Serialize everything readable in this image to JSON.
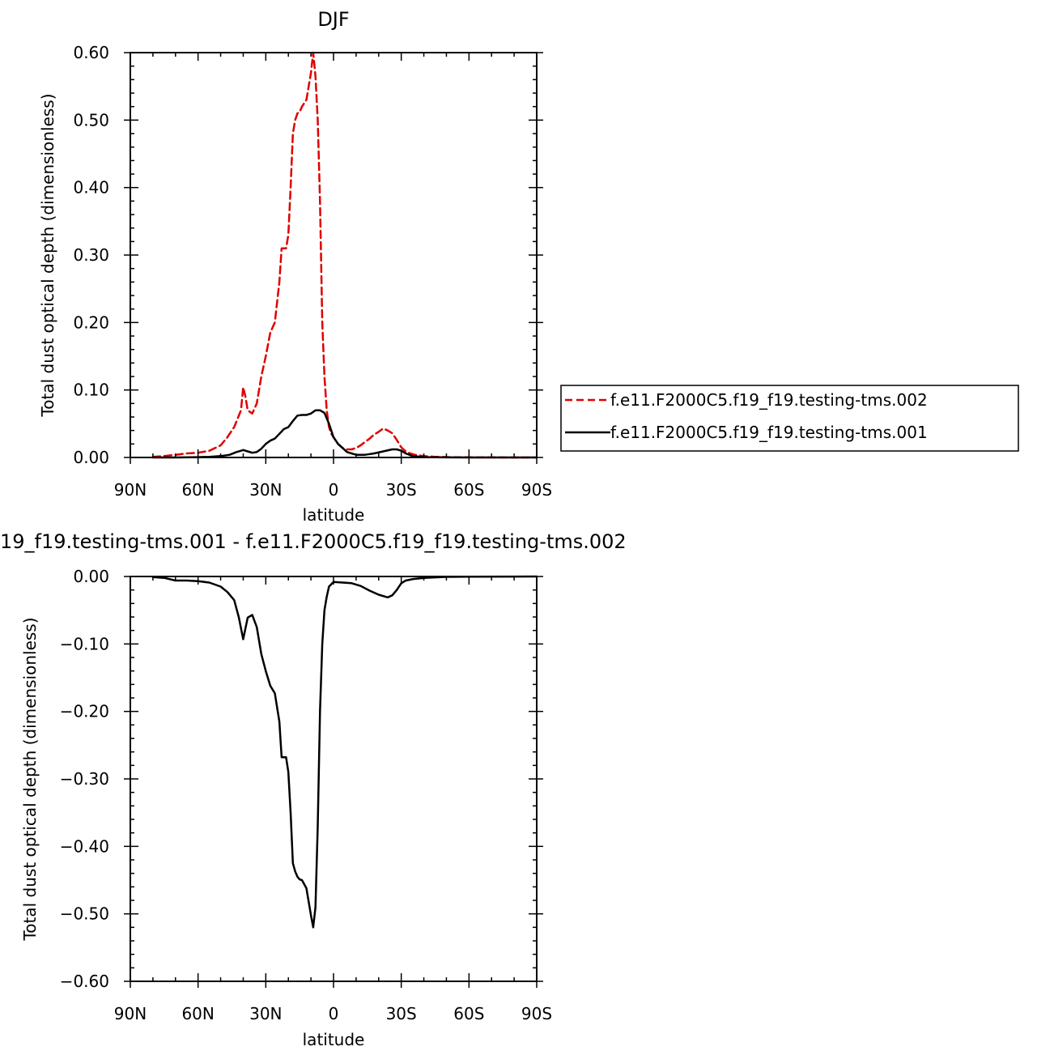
{
  "chart_data": [
    {
      "type": "line",
      "title": "DJF",
      "xlabel": "latitude",
      "ylabel": "Total dust optical depth (dimensionless)",
      "xlim": [
        90,
        -90
      ],
      "ylim": [
        0,
        0.6
      ],
      "x_ticks": [
        {
          "value": 90,
          "label": "90N"
        },
        {
          "value": 60,
          "label": "60N"
        },
        {
          "value": 30,
          "label": "30N"
        },
        {
          "value": 0,
          "label": "0"
        },
        {
          "value": -30,
          "label": "30S"
        },
        {
          "value": -60,
          "label": "60S"
        },
        {
          "value": -90,
          "label": "90S"
        }
      ],
      "y_ticks": [
        {
          "value": 0.0,
          "label": "0.00"
        },
        {
          "value": 0.1,
          "label": "0.10"
        },
        {
          "value": 0.2,
          "label": "0.20"
        },
        {
          "value": 0.3,
          "label": "0.30"
        },
        {
          "value": 0.4,
          "label": "0.40"
        },
        {
          "value": 0.5,
          "label": "0.50"
        },
        {
          "value": 0.6,
          "label": "0.60"
        }
      ],
      "legend": "right",
      "series": [
        {
          "name": "f.e11.F2000C5.f19_f19.testing-tms.002",
          "color": "#e00000",
          "dash": "dashed",
          "x": [
            80,
            75,
            70,
            65,
            60,
            55,
            50,
            47,
            44,
            41,
            40,
            39,
            38,
            36,
            34,
            32,
            30,
            28,
            26,
            24,
            23,
            21,
            20,
            19,
            18,
            17,
            16,
            15,
            14,
            12,
            10,
            9,
            8,
            7,
            6,
            5,
            4,
            3,
            2,
            1,
            0,
            -1,
            -2,
            -4,
            -6,
            -8,
            -10,
            -12,
            -14,
            -16,
            -18,
            -20,
            -22,
            -24,
            -26,
            -28,
            -30,
            -32,
            -34,
            -36,
            -40,
            -45,
            -50,
            -55,
            -60,
            -70,
            -80,
            -90
          ],
          "y": [
            0.001,
            0.002,
            0.004,
            0.006,
            0.007,
            0.01,
            0.018,
            0.03,
            0.045,
            0.07,
            0.104,
            0.09,
            0.07,
            0.065,
            0.08,
            0.12,
            0.15,
            0.185,
            0.2,
            0.26,
            0.31,
            0.31,
            0.33,
            0.4,
            0.48,
            0.5,
            0.51,
            0.512,
            0.52,
            0.53,
            0.57,
            0.6,
            0.565,
            0.5,
            0.38,
            0.2,
            0.12,
            0.07,
            0.045,
            0.035,
            0.03,
            0.025,
            0.02,
            0.014,
            0.012,
            0.012,
            0.014,
            0.018,
            0.023,
            0.028,
            0.034,
            0.038,
            0.043,
            0.04,
            0.036,
            0.026,
            0.015,
            0.009,
            0.006,
            0.004,
            0.002,
            0.001,
            0.0006,
            0.0003,
            0.0002,
            0.0001,
            0.0,
            0.0
          ]
        },
        {
          "name": "f.e11.F2000C5.f19_f19.testing-tms.001",
          "color": "#000000",
          "dash": "solid",
          "x": [
            80,
            70,
            60,
            55,
            50,
            46,
            43,
            41,
            40,
            38,
            36,
            34,
            32,
            30,
            28,
            26,
            24,
            22,
            20,
            18,
            16,
            14,
            12,
            10,
            8,
            6,
            4,
            2,
            0,
            -2,
            -4,
            -6,
            -10,
            -14,
            -18,
            -22,
            -26,
            -28,
            -30,
            -32,
            -35,
            -40,
            -50,
            -60,
            -90
          ],
          "y": [
            0.0,
            0.0,
            0.0005,
            0.001,
            0.002,
            0.004,
            0.008,
            0.01,
            0.011,
            0.009,
            0.007,
            0.008,
            0.013,
            0.02,
            0.025,
            0.028,
            0.035,
            0.042,
            0.045,
            0.054,
            0.062,
            0.063,
            0.063,
            0.065,
            0.07,
            0.07,
            0.066,
            0.05,
            0.03,
            0.02,
            0.014,
            0.008,
            0.004,
            0.004,
            0.006,
            0.009,
            0.012,
            0.012,
            0.01,
            0.006,
            0.002,
            0.0005,
            0.0001,
            0.0,
            0.0
          ]
        }
      ]
    },
    {
      "type": "line",
      "title": "19_f19.testing-tms.001 - f.e11.F2000C5.f19_f19.testing-tms.002",
      "xlabel": "latitude",
      "ylabel": "Total dust optical depth (dimensionless)",
      "xlim": [
        90,
        -90
      ],
      "ylim": [
        -0.6,
        0
      ],
      "x_ticks": [
        {
          "value": 90,
          "label": "90N"
        },
        {
          "value": 60,
          "label": "60N"
        },
        {
          "value": 30,
          "label": "30N"
        },
        {
          "value": 0,
          "label": "0"
        },
        {
          "value": -30,
          "label": "30S"
        },
        {
          "value": -60,
          "label": "60S"
        },
        {
          "value": -90,
          "label": "90S"
        }
      ],
      "y_ticks": [
        {
          "value": 0.0,
          "label": "0.00"
        },
        {
          "value": -0.1,
          "label": "-0.10"
        },
        {
          "value": -0.2,
          "label": "-0.20"
        },
        {
          "value": -0.3,
          "label": "-0.30"
        },
        {
          "value": -0.4,
          "label": "-0.40"
        },
        {
          "value": -0.5,
          "label": "-0.50"
        },
        {
          "value": -0.6,
          "label": "-0.60"
        }
      ],
      "series": [
        {
          "name": "",
          "color": "#000000",
          "dash": "solid",
          "x": [
            80,
            75,
            70,
            65,
            60,
            55,
            50,
            47,
            44,
            42,
            40,
            38,
            36,
            34,
            32,
            30,
            28,
            26,
            24,
            23,
            21,
            20,
            19,
            18,
            17,
            16,
            15,
            14,
            12,
            10,
            9,
            8,
            7,
            6,
            5,
            4,
            3,
            2,
            0,
            -4,
            -8,
            -12,
            -16,
            -20,
            -24,
            -26,
            -28,
            -30,
            -32,
            -35,
            -40,
            -50,
            -60,
            -90
          ],
          "y": [
            -0.001,
            -0.002,
            -0.006,
            -0.006,
            -0.007,
            -0.009,
            -0.015,
            -0.023,
            -0.035,
            -0.06,
            -0.093,
            -0.061,
            -0.057,
            -0.075,
            -0.115,
            -0.14,
            -0.162,
            -0.173,
            -0.215,
            -0.268,
            -0.268,
            -0.29,
            -0.35,
            -0.425,
            -0.437,
            -0.445,
            -0.449,
            -0.45,
            -0.462,
            -0.502,
            -0.52,
            -0.49,
            -0.37,
            -0.2,
            -0.1,
            -0.05,
            -0.03,
            -0.015,
            -0.008,
            -0.009,
            -0.01,
            -0.014,
            -0.021,
            -0.027,
            -0.031,
            -0.028,
            -0.02,
            -0.01,
            -0.006,
            -0.004,
            -0.002,
            -0.0006,
            -0.0002,
            0.0
          ]
        }
      ]
    }
  ]
}
